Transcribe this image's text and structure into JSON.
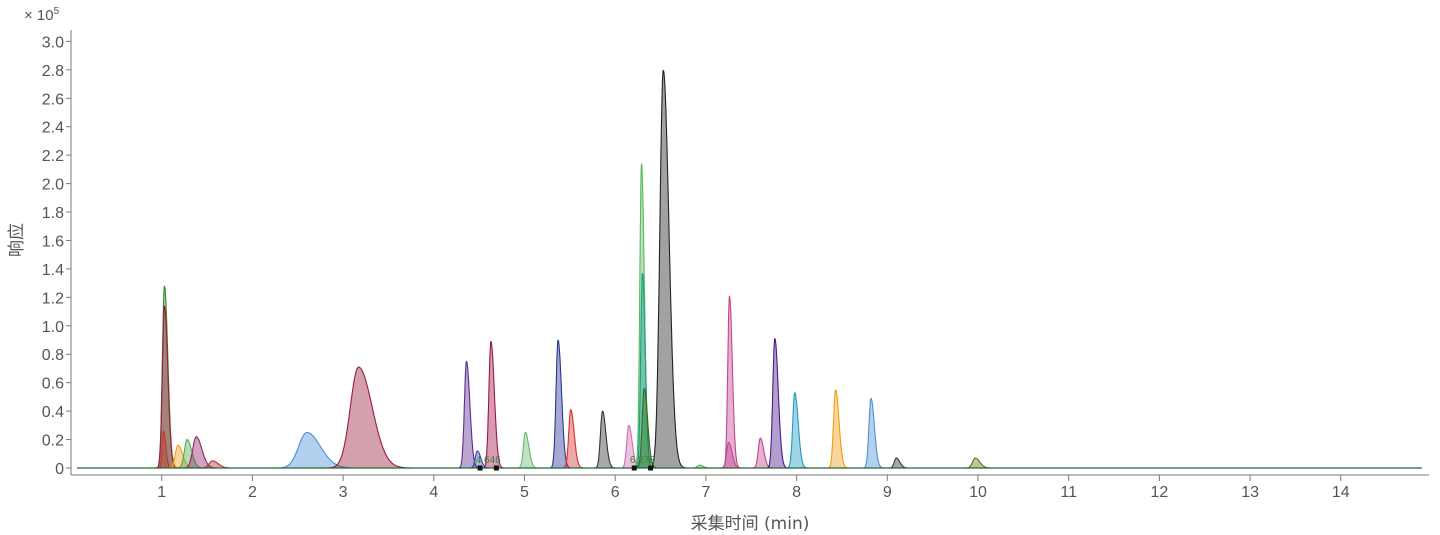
{
  "chart_data": {
    "type": "area",
    "title": "",
    "xlabel": "采集时间 (min)",
    "ylabel": "响应",
    "y_multiplier": "× 10",
    "y_multiplier_exp": "5",
    "xlim": [
      0,
      14.9
    ],
    "ylim": [
      0,
      3.05
    ],
    "x_ticks": [
      "1",
      "2",
      "3",
      "4",
      "5",
      "6",
      "7",
      "8",
      "9",
      "10",
      "11",
      "12",
      "13",
      "14"
    ],
    "y_ticks": [
      "0",
      "0.2",
      "0.4",
      "0.6",
      "0.8",
      "1.0",
      "1.2",
      "1.4",
      "1.6",
      "1.8",
      "2.0",
      "2.2",
      "2.4",
      "2.6",
      "2.8",
      "3.0"
    ],
    "grid": false,
    "legend": "none",
    "annotations": [
      {
        "text": "4.646",
        "x": 4.6,
        "y": 0.02,
        "color": "#3a7d3a"
      },
      {
        "text": "6.278",
        "x": 6.3,
        "y": 0.02,
        "color": "#3a7d3a"
      }
    ],
    "series": [
      {
        "color": "#2e8b2e",
        "peaks": [
          {
            "rt": 1.03,
            "height": 1.28,
            "width": 0.03
          }
        ]
      },
      {
        "color": "#9a1c3c",
        "peaks": [
          {
            "rt": 1.03,
            "height": 1.14,
            "width": 0.03
          }
        ]
      },
      {
        "color": "#c0392b",
        "peaks": [
          {
            "rt": 1.02,
            "height": 0.26,
            "width": 0.02
          }
        ]
      },
      {
        "color": "#f39c12",
        "peaks": [
          {
            "rt": 1.18,
            "height": 0.16,
            "width": 0.04
          }
        ]
      },
      {
        "color": "#4caf50",
        "peaks": [
          {
            "rt": 1.28,
            "height": 0.2,
            "width": 0.04
          }
        ]
      },
      {
        "color": "#8e2466",
        "peaks": [
          {
            "rt": 1.38,
            "height": 0.22,
            "width": 0.05
          }
        ]
      },
      {
        "color": "#b03030",
        "peaks": [
          {
            "rt": 1.56,
            "height": 0.05,
            "width": 0.05
          }
        ]
      },
      {
        "color": "#4a90d9",
        "peaks": [
          {
            "rt": 2.6,
            "height": 0.25,
            "width": 0.12
          }
        ]
      },
      {
        "color": "#9a1c3c",
        "peaks": [
          {
            "rt": 3.17,
            "height": 0.71,
            "width": 0.12
          }
        ]
      },
      {
        "color": "#5b2c8f",
        "peaks": [
          {
            "rt": 4.36,
            "height": 0.75,
            "width": 0.03
          }
        ]
      },
      {
        "color": "#3949ab",
        "peaks": [
          {
            "rt": 4.48,
            "height": 0.12,
            "width": 0.03
          }
        ]
      },
      {
        "color": "#a0144a",
        "peaks": [
          {
            "rt": 4.63,
            "height": 0.89,
            "width": 0.03
          }
        ]
      },
      {
        "color": "#66bb6a",
        "peaks": [
          {
            "rt": 5.01,
            "height": 0.25,
            "width": 0.03
          }
        ]
      },
      {
        "color": "#283593",
        "peaks": [
          {
            "rt": 5.37,
            "height": 0.9,
            "width": 0.03
          }
        ]
      },
      {
        "color": "#d32f2f",
        "peaks": [
          {
            "rt": 5.51,
            "height": 0.41,
            "width": 0.03
          }
        ]
      },
      {
        "color": "#333333",
        "peaks": [
          {
            "rt": 5.86,
            "height": 0.4,
            "width": 0.03
          }
        ]
      },
      {
        "color": "#d36bb5",
        "peaks": [
          {
            "rt": 6.15,
            "height": 0.3,
            "width": 0.03
          }
        ]
      },
      {
        "color": "#5cb85c",
        "peaks": [
          {
            "rt": 6.29,
            "height": 2.14,
            "width": 0.025
          }
        ]
      },
      {
        "color": "#16a085",
        "peaks": [
          {
            "rt": 6.3,
            "height": 1.37,
            "width": 0.025
          }
        ]
      },
      {
        "color": "#2e6b1e",
        "peaks": [
          {
            "rt": 6.32,
            "height": 0.56,
            "width": 0.03
          }
        ]
      },
      {
        "color": "#222222",
        "peaks": [
          {
            "rt": 6.53,
            "height": 2.8,
            "width": 0.05
          }
        ]
      },
      {
        "color": "#4caf50",
        "peaks": [
          {
            "rt": 6.93,
            "height": 0.02,
            "width": 0.03
          }
        ]
      },
      {
        "color": "#c2458f",
        "peaks": [
          {
            "rt": 7.26,
            "height": 1.21,
            "width": 0.025
          },
          {
            "rt": 7.25,
            "height": 0.18,
            "width": 0.03
          }
        ]
      },
      {
        "color": "#c2458f",
        "peaks": [
          {
            "rt": 7.6,
            "height": 0.21,
            "width": 0.03
          }
        ]
      },
      {
        "color": "#4a1a8a",
        "peaks": [
          {
            "rt": 7.76,
            "height": 0.91,
            "width": 0.03
          }
        ]
      },
      {
        "color": "#1e9ac0",
        "peaks": [
          {
            "rt": 7.98,
            "height": 0.53,
            "width": 0.03
          }
        ]
      },
      {
        "color": "#f39c12",
        "peaks": [
          {
            "rt": 8.43,
            "height": 0.55,
            "width": 0.03
          }
        ]
      },
      {
        "color": "#4a90d9",
        "peaks": [
          {
            "rt": 8.82,
            "height": 0.49,
            "width": 0.03
          }
        ]
      },
      {
        "color": "#333333",
        "peaks": [
          {
            "rt": 9.1,
            "height": 0.07,
            "width": 0.03
          }
        ]
      },
      {
        "color": "#7a6a14",
        "peaks": [
          {
            "rt": 9.97,
            "height": 0.07,
            "width": 0.04
          }
        ]
      }
    ]
  }
}
